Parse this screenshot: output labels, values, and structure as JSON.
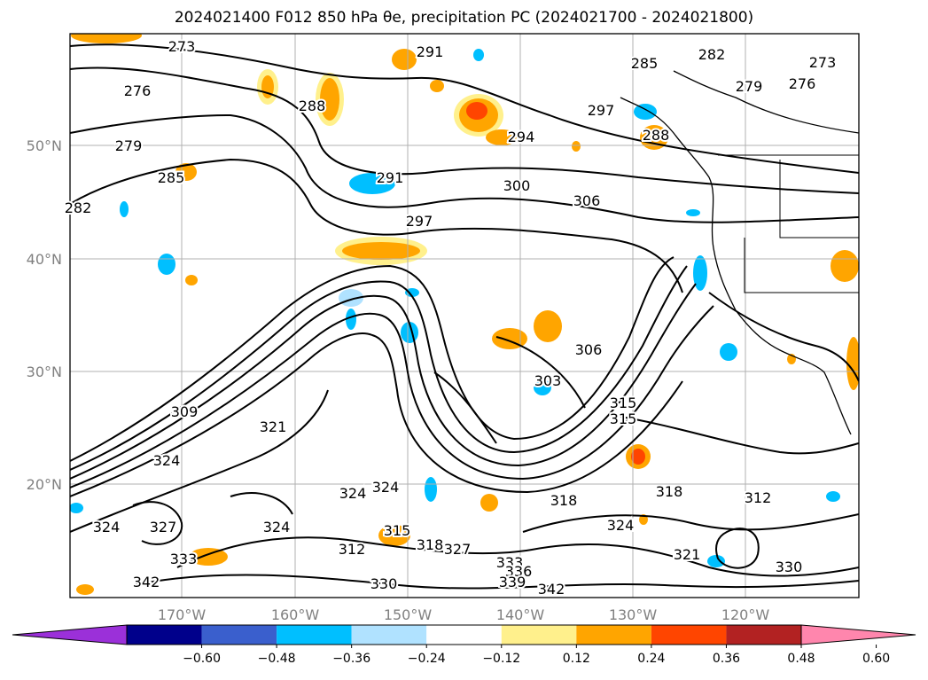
{
  "title": "2024021400 F012 850 hPa θe, precipitation PC (2024021700 - 2024021800)",
  "lat_labels": [
    "50°N",
    "40°N",
    "30°N",
    "20°N"
  ],
  "lon_labels": [
    "170°W",
    "160°W",
    "150°W",
    "140°W",
    "130°W",
    "120°W"
  ],
  "colorbar": {
    "ticks": [
      "−0.60",
      "−0.48",
      "−0.36",
      "−0.24",
      "−0.12",
      "0.12",
      "0.24",
      "0.36",
      "0.48",
      "0.60"
    ],
    "colors": [
      "#9b30d9",
      "#00008b",
      "#3a5fcd",
      "#00bfff",
      "#b0e2ff",
      "#ffffff",
      "#fff08c",
      "#ffa500",
      "#ff4500",
      "#b22222",
      "#ff86ad"
    ]
  },
  "contour_labels": [
    "273",
    "276",
    "279",
    "282",
    "285",
    "288",
    "291",
    "294",
    "297",
    "300",
    "303",
    "306",
    "309",
    "312",
    "315",
    "318",
    "321",
    "324",
    "327",
    "330",
    "333",
    "336",
    "339",
    "342"
  ]
}
